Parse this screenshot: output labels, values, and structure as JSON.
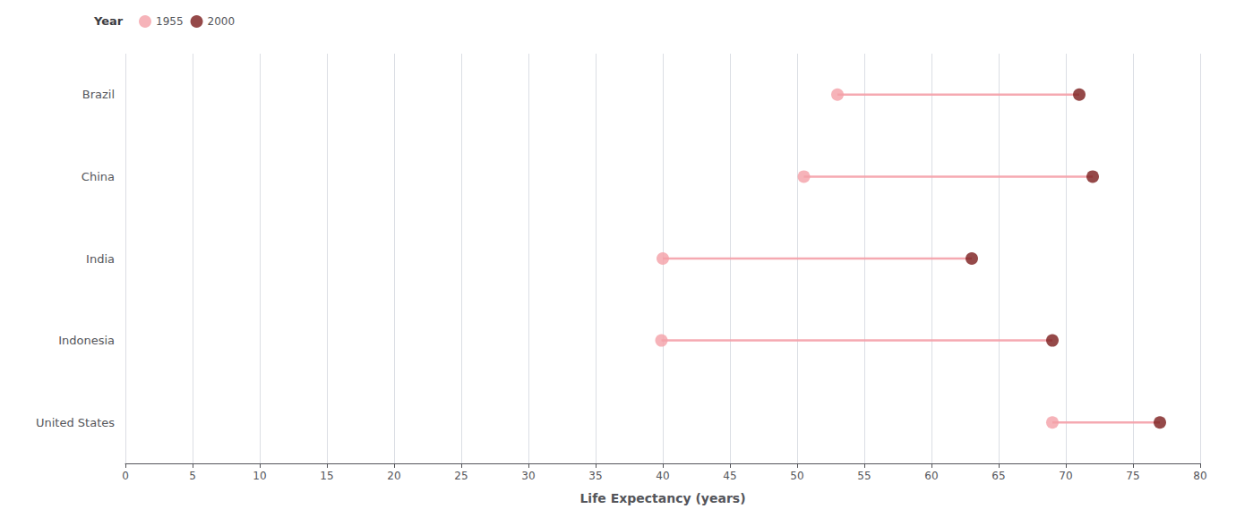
{
  "chart_data": {
    "type": "dumbbell",
    "categories": [
      "Brazil",
      "China",
      "India",
      "Indonesia",
      "United States"
    ],
    "series": [
      {
        "name": "1955",
        "color": "#f4a0a8",
        "values": [
          53.0,
          50.5,
          40.0,
          39.9,
          69.0
        ]
      },
      {
        "name": "2000",
        "color": "#7b1c1c",
        "values": [
          71.0,
          72.0,
          63.0,
          69.0,
          77.0
        ]
      }
    ],
    "xlabel": "Life Expectancy (years)",
    "legend_title": "Year",
    "xlim": [
      0,
      80
    ],
    "xticks": [
      0,
      5,
      10,
      15,
      20,
      25,
      30,
      35,
      40,
      45,
      50,
      55,
      60,
      65,
      70,
      75,
      80
    ],
    "grid": true,
    "legend": "upper left"
  }
}
